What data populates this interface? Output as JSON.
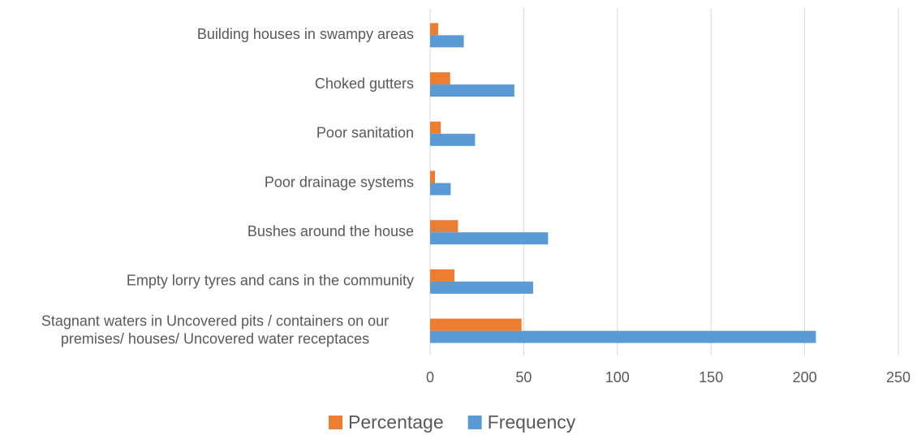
{
  "chart_data": {
    "type": "hbar",
    "categories": [
      "Building houses in swampy areas",
      "Choked gutters",
      "Poor sanitation",
      "Poor drainage systems",
      "Bushes around the house",
      "Empty  lorry tyres and cans in the community",
      "Stagnant waters in Uncovered pits / containers on our premises/ houses/ Uncovered water receptaces"
    ],
    "series": [
      {
        "name": "Percentage",
        "color": "#ED7D31",
        "values": [
          4.3,
          10.7,
          5.7,
          2.6,
          14.9,
          13.0,
          48.8
        ]
      },
      {
        "name": "Frequency",
        "color": "#5B9BD5",
        "values": [
          18,
          45,
          24,
          11,
          63,
          55,
          206
        ]
      }
    ],
    "xlim": [
      0,
      250
    ],
    "xticks": [
      0,
      50,
      100,
      150,
      200,
      250
    ],
    "grid": true,
    "legend": "bottom"
  }
}
